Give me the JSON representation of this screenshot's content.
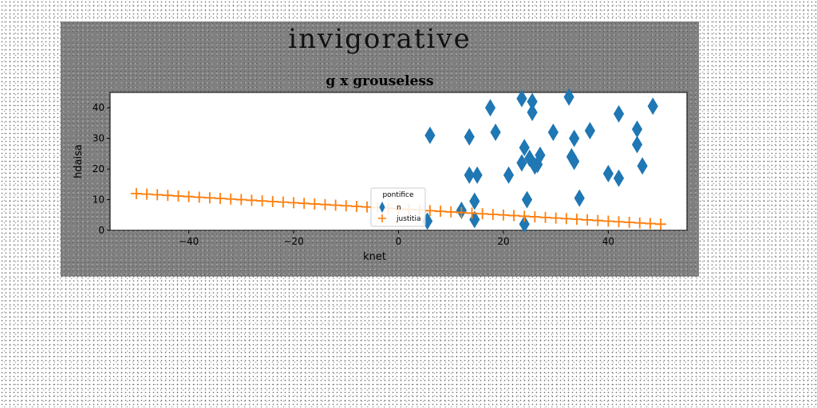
{
  "figure": {
    "suptitle": "invigorative"
  },
  "chart_data": {
    "type": "scatter",
    "title": "g x grouseless",
    "xlabel": "knet",
    "ylabel": "hdaisa",
    "xlim": [
      -55,
      55
    ],
    "ylim": [
      0,
      45
    ],
    "xticks": [
      -40,
      -20,
      0,
      20,
      40
    ],
    "xtick_labels": [
      "−40",
      "−20",
      "0",
      "20",
      "40"
    ],
    "yticks": [
      0,
      10,
      20,
      30,
      40
    ],
    "ytick_labels": [
      "0",
      "10",
      "20",
      "30",
      "40"
    ],
    "grid": false,
    "legend": {
      "title": "pontifice",
      "placement": "lower-center"
    },
    "series": [
      {
        "name": "n",
        "marker": "thin_diamond",
        "color": "#1f77b4",
        "points": [
          [
            5.5,
            3
          ],
          [
            6,
            31
          ],
          [
            12,
            6.5
          ],
          [
            13.5,
            18
          ],
          [
            13.5,
            30.5
          ],
          [
            14.5,
            9.5
          ],
          [
            14.5,
            3.5
          ],
          [
            15,
            18
          ],
          [
            17.5,
            40
          ],
          [
            18.5,
            32
          ],
          [
            21,
            18
          ],
          [
            23.5,
            43
          ],
          [
            23.5,
            22
          ],
          [
            24,
            2
          ],
          [
            24,
            27
          ],
          [
            24.5,
            10
          ],
          [
            25,
            23.5
          ],
          [
            25.5,
            42
          ],
          [
            25.5,
            38.5
          ],
          [
            26,
            21
          ],
          [
            26.5,
            21.5
          ],
          [
            27,
            24.5
          ],
          [
            29.5,
            32
          ],
          [
            32.5,
            43.5
          ],
          [
            33,
            24
          ],
          [
            33.5,
            22.5
          ],
          [
            33.5,
            30
          ],
          [
            34.5,
            10.5
          ],
          [
            36.5,
            32.5
          ],
          [
            40,
            18.5
          ],
          [
            42,
            38
          ],
          [
            42,
            17
          ],
          [
            45.5,
            33
          ],
          [
            45.5,
            28
          ],
          [
            46.5,
            21
          ],
          [
            48.5,
            40.5
          ]
        ]
      },
      {
        "name": "justitia",
        "marker": "plus",
        "color": "#ff7f0e",
        "x_start": -50,
        "x_end": 50,
        "y_start": 12,
        "y_end": 2,
        "count": 51
      }
    ]
  }
}
